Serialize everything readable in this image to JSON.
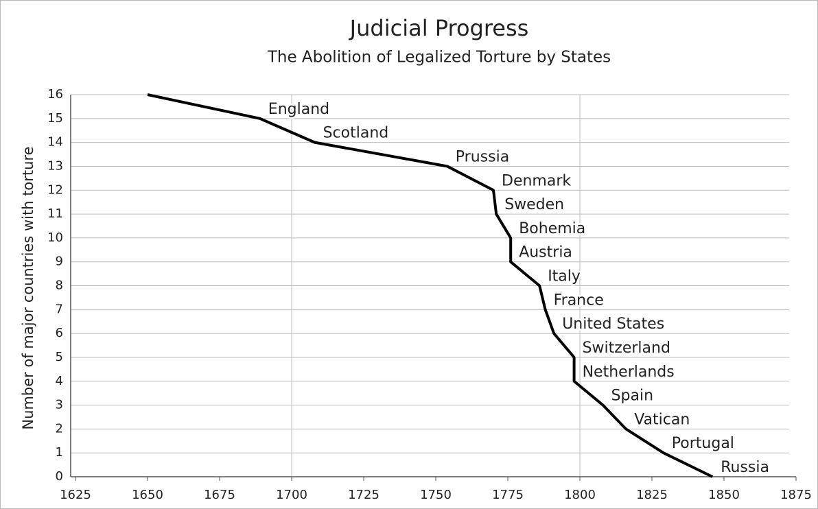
{
  "chart_data": {
    "type": "line",
    "title": "Judicial Progress",
    "subtitle": "The Abolition of Legalized Torture by States",
    "ylabel": "Number of major countries with torture",
    "color": "#000000",
    "x": [
      1650,
      1689,
      1708,
      1754,
      1770,
      1771,
      1776,
      1776,
      1786,
      1788,
      1791,
      1798,
      1798,
      1808,
      1816,
      1829,
      1846
    ],
    "values": [
      16,
      15,
      14,
      13,
      12,
      11,
      10,
      9,
      8,
      7,
      6,
      5,
      4,
      3,
      2,
      1,
      0
    ],
    "point_labels": [
      null,
      "England",
      "Scotland",
      "Prussia",
      "Denmark",
      "Sweden",
      "Bohemia",
      "Austria",
      "Italy",
      "France",
      "United States",
      "Switzerland",
      "Netherlands",
      "Spain",
      "Vatican",
      "Portugal",
      "Russia"
    ],
    "xlim": [
      1625,
      1875
    ],
    "xticks": [
      1625,
      1650,
      1675,
      1700,
      1725,
      1750,
      1775,
      1800,
      1825,
      1850,
      1875
    ],
    "ylim": [
      0,
      16
    ],
    "yticks": [
      0,
      1,
      2,
      3,
      4,
      5,
      6,
      7,
      8,
      9,
      10,
      11,
      12,
      13,
      14,
      15,
      16
    ],
    "grid": true,
    "xgrid": [
      1700,
      1800
    ]
  }
}
